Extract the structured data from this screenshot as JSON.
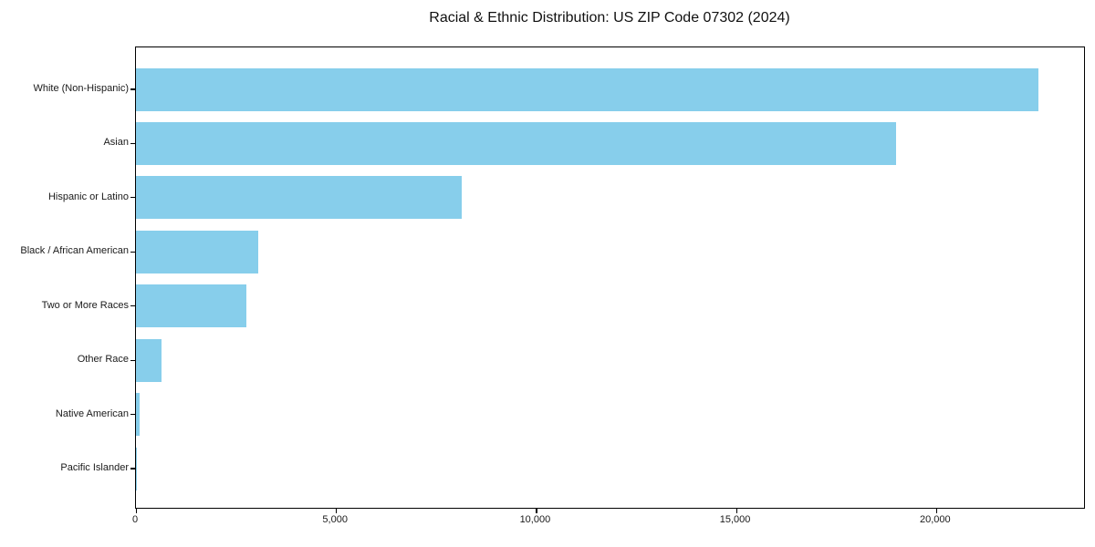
{
  "chart_data": {
    "type": "bar",
    "orientation": "horizontal",
    "title": "Racial & Ethnic Distribution: US ZIP Code 07302 (2024)",
    "xlabel": "",
    "ylabel": "",
    "categories": [
      "White (Non-Hispanic)",
      "Asian",
      "Hispanic or Latino",
      "Black / African American",
      "Two or More Races",
      "Other Race",
      "Native American",
      "Pacific Islander"
    ],
    "values": [
      22550,
      19000,
      8150,
      3050,
      2750,
      650,
      90,
      15
    ],
    "xlim": [
      0,
      23700
    ],
    "x_ticks": [
      {
        "value": 0,
        "label": "0"
      },
      {
        "value": 5000,
        "label": "5,000"
      },
      {
        "value": 10000,
        "label": "10,000"
      },
      {
        "value": 15000,
        "label": "15,000"
      },
      {
        "value": 20000,
        "label": "20,000"
      }
    ],
    "bar_color": "#87CEEB",
    "background_color": "#ffffff",
    "axis_color": "#000000",
    "grid": false,
    "legend": null
  }
}
